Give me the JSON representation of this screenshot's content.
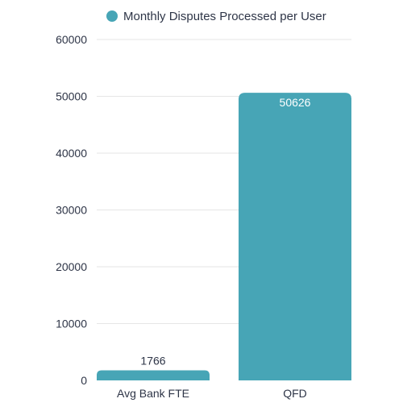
{
  "chart_data": {
    "type": "bar",
    "legend_position": "top",
    "grid": true,
    "categories": [
      "Avg Bank FTE",
      "QFD"
    ],
    "series": [
      {
        "name": "Monthly Disputes Processed per User",
        "values": [
          1766,
          50626
        ],
        "color": "#47a5b6"
      }
    ],
    "data_labels": [
      "1766",
      "50626"
    ],
    "ylim": [
      0,
      60000
    ],
    "yticks": [
      0,
      10000,
      20000,
      30000,
      40000,
      50000,
      60000
    ],
    "ytick_labels": [
      "0",
      "10000",
      "20000",
      "30000",
      "40000",
      "50000",
      "60000"
    ]
  },
  "colors": {
    "bar": "#47a5b6",
    "grid": "#e6e6e6",
    "text": "#2e3547",
    "data_label_inside": "#ffffff"
  }
}
